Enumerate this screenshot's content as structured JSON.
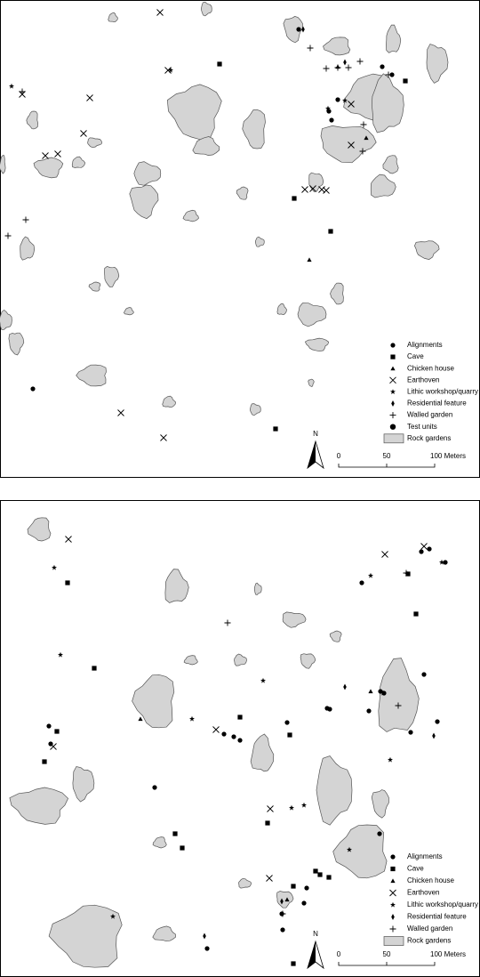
{
  "maps": [
    {
      "legend": [
        "Alignments",
        "Cave",
        "Chicken house",
        "Earthoven",
        "Lithic workshop/quarry",
        "Residential feature",
        "Walled garden",
        "Test units",
        "Rock gardens"
      ],
      "north": "N",
      "scale": [
        "0",
        "50",
        "100 Meters"
      ]
    },
    {
      "legend": [
        "Alignments",
        "Cave",
        "Chicken house",
        "Earthoven",
        "Lithic workshop/quarry",
        "Residential feature",
        "Walled garden",
        "Rock gardens"
      ],
      "north": "N",
      "scale": [
        "0",
        "50",
        "100 Meters"
      ]
    }
  ]
}
